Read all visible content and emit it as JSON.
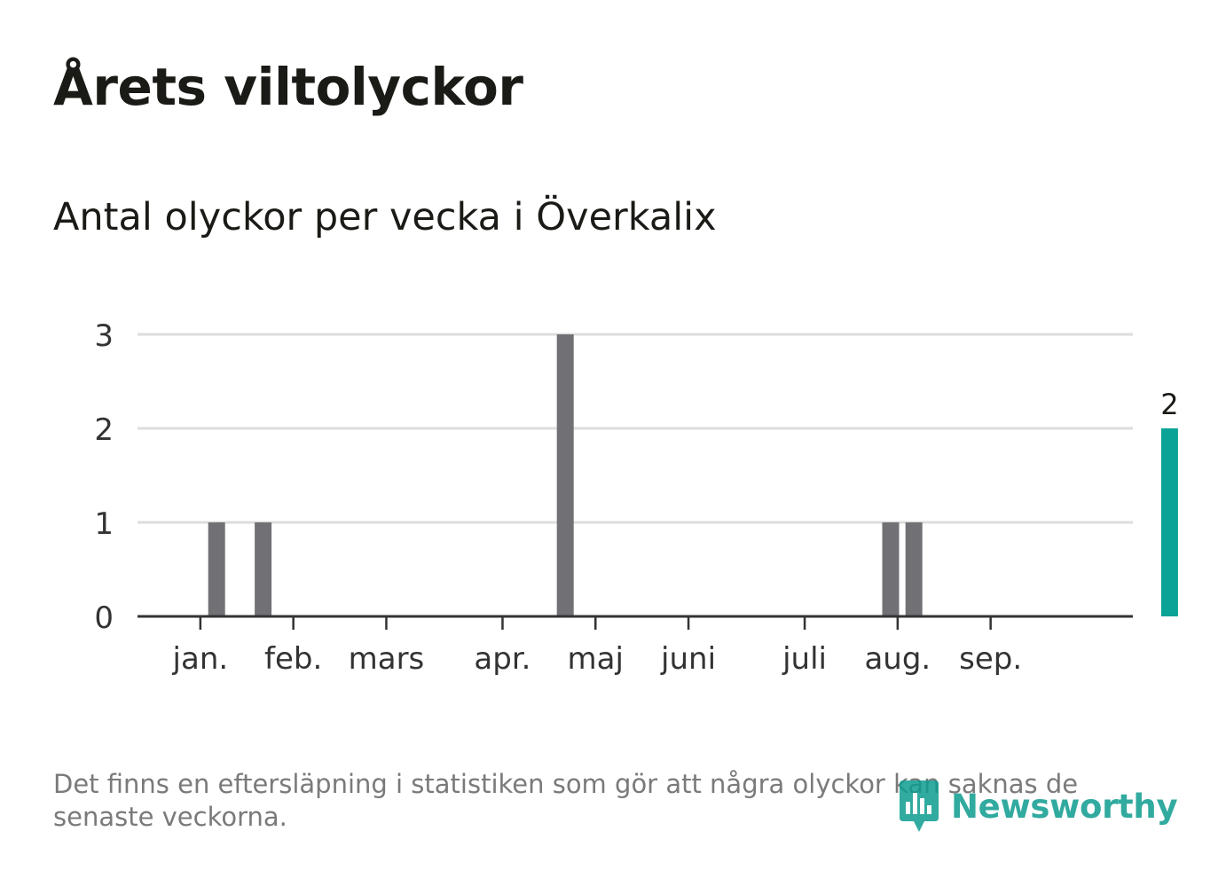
{
  "header": {
    "title": "Årets viltolyckor",
    "subtitle": "Antal olyckor per vecka i Överkalix"
  },
  "footer": {
    "note": "Det finns en eftersläpning i statistiken som gör att några olyckor kan saknas de senaste veckorna.",
    "brand": "Newsworthy"
  },
  "colors": {
    "bar": "#717075",
    "highlight": "#0aa396",
    "grid": "#dddddd",
    "axis": "#333333",
    "text": "#1a1a16",
    "tick_text": "#333333"
  },
  "chart_data": {
    "type": "bar",
    "title": "Årets viltolyckor",
    "subtitle": "Antal olyckor per vecka i Överkalix",
    "xlabel": "",
    "ylabel": "",
    "ylim": [
      0,
      3
    ],
    "yticks": [
      0,
      1,
      2,
      3
    ],
    "weeks": [
      1,
      2,
      3,
      4,
      5,
      6,
      7,
      8,
      9,
      10,
      11,
      12,
      13,
      14,
      15,
      16,
      17,
      18,
      19,
      20,
      21,
      22,
      23,
      24,
      25,
      26,
      27,
      28,
      29,
      30,
      31,
      32,
      33,
      34,
      35,
      36,
      37,
      38,
      39,
      40,
      41,
      42,
      43
    ],
    "values": [
      0,
      1,
      0,
      1,
      0,
      0,
      0,
      0,
      0,
      0,
      0,
      0,
      0,
      0,
      0,
      0,
      3,
      0,
      0,
      0,
      0,
      0,
      0,
      0,
      0,
      0,
      0,
      0,
      0,
      0,
      1,
      1,
      0,
      0,
      0,
      0,
      0,
      0,
      0,
      0,
      0,
      0,
      2
    ],
    "highlight_index": 42,
    "highlight_label": "2",
    "month_ticks": [
      {
        "label": "jan.",
        "week": 1.3
      },
      {
        "label": "feb.",
        "week": 5.3
      },
      {
        "label": "mars",
        "week": 9.3
      },
      {
        "label": "apr.",
        "week": 14.3
      },
      {
        "label": "maj",
        "week": 18.3
      },
      {
        "label": "juni",
        "week": 22.3
      },
      {
        "label": "juli",
        "week": 27.3
      },
      {
        "label": "aug.",
        "week": 31.3
      },
      {
        "label": "sep.",
        "week": 35.3
      }
    ],
    "grid": true,
    "legend": "none"
  }
}
